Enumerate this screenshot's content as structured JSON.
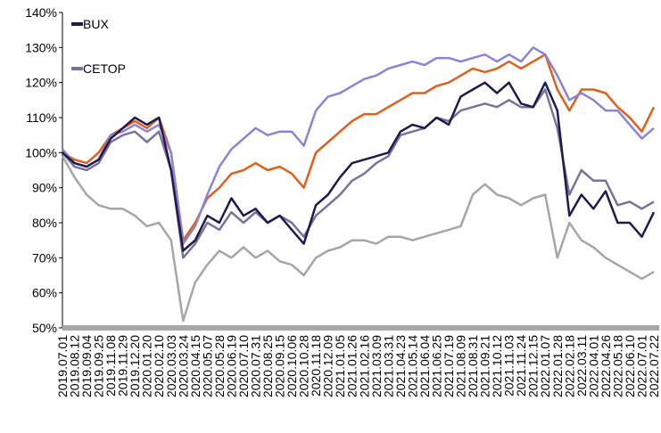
{
  "chart_data": {
    "type": "line",
    "categories": [
      "2019.07.01",
      "2019.08.12",
      "2019.09.04",
      "2019.09.25",
      "2019.11.08",
      "2019.11.29",
      "2019.12.20",
      "2020.01.20",
      "2020.02.10",
      "2020.03.03",
      "2020.03.24",
      "2020.04.15",
      "2020.05.07",
      "2020.05.28",
      "2020.06.19",
      "2020.07.10",
      "2020.07.31",
      "2020.08.25",
      "2020.09.15",
      "2020.10.06",
      "2020.10.28",
      "2020.11.18",
      "2020.12.09",
      "2021.01.05",
      "2021.01.26",
      "2021.02.16",
      "2021.03.09",
      "2021.03.31",
      "2021.04.23",
      "2021.05.14",
      "2021.06.04",
      "2021.06.25",
      "2021.07.19",
      "2021.08.09",
      "2021.08.31",
      "2021.09.21",
      "2021.10.12",
      "2021.11.03",
      "2021.11.24",
      "2021.12.15",
      "2022.01.07",
      "2022.01.28",
      "2022.02.18",
      "2022.03.11",
      "2022.04.01",
      "2022.04.26",
      "2022.05.18",
      "2022.06.10",
      "2022.07.01",
      "2022.07.22"
    ],
    "series": [
      {
        "color": "#a6a6a6",
        "values": [
          99,
          93,
          88,
          85,
          84,
          84,
          82,
          79,
          80,
          75,
          52,
          63,
          68,
          72,
          70,
          73,
          70,
          72,
          69,
          68,
          65,
          70,
          72,
          73,
          75,
          75,
          74,
          76,
          76,
          75,
          76,
          77,
          78,
          79,
          88,
          91,
          88,
          87,
          85,
          87,
          88,
          70,
          80,
          75,
          73,
          70,
          68,
          66,
          64,
          66
        ]
      },
      {
        "color": "#e0601b",
        "values": [
          100,
          98,
          97,
          100,
          105,
          107,
          109,
          107,
          110,
          100,
          75,
          80,
          87,
          90,
          94,
          95,
          97,
          95,
          96,
          94,
          90,
          100,
          103,
          106,
          109,
          111,
          111,
          113,
          115,
          117,
          117,
          119,
          120,
          122,
          124,
          123,
          124,
          126,
          124,
          126,
          128,
          118,
          112,
          118,
          118,
          117,
          113,
          110,
          106,
          113
        ]
      },
      {
        "color": "#8b84d6",
        "values": [
          101,
          97,
          96,
          98,
          105,
          106,
          108,
          106,
          108,
          100,
          74,
          79,
          88,
          96,
          101,
          104,
          107,
          105,
          106,
          106,
          102,
          112,
          116,
          117,
          119,
          121,
          122,
          124,
          125,
          126,
          125,
          127,
          127,
          126,
          127,
          128,
          126,
          128,
          126,
          130,
          128,
          122,
          115,
          117,
          115,
          112,
          112,
          108,
          104,
          107
        ]
      },
      {
        "name": "CETOP",
        "color": "#77739a",
        "values": [
          100,
          96,
          95,
          97,
          103,
          105,
          106,
          103,
          106,
          95,
          70,
          74,
          80,
          78,
          83,
          80,
          83,
          80,
          82,
          80,
          76,
          82,
          85,
          88,
          92,
          94,
          97,
          99,
          105,
          106,
          107,
          110,
          109,
          112,
          113,
          114,
          113,
          115,
          113,
          113,
          118,
          107,
          88,
          95,
          92,
          92,
          85,
          86,
          84,
          86
        ]
      },
      {
        "name": "BUX",
        "color": "#1f1a4d",
        "values": [
          100,
          97,
          96,
          98,
          104,
          107,
          110,
          108,
          110,
          95,
          72,
          75,
          82,
          80,
          87,
          82,
          84,
          80,
          82,
          78,
          74,
          85,
          88,
          93,
          97,
          98,
          99,
          100,
          106,
          108,
          107,
          110,
          108,
          116,
          118,
          120,
          117,
          120,
          114,
          113,
          120,
          112,
          82,
          88,
          84,
          89,
          80,
          80,
          76,
          83
        ]
      }
    ],
    "ylim": [
      50,
      140
    ],
    "yticks": [
      {
        "value": 50,
        "label": "50%"
      },
      {
        "value": 60,
        "label": "60%"
      },
      {
        "value": 70,
        "label": "70%"
      },
      {
        "value": 80,
        "label": "80%"
      },
      {
        "value": 90,
        "label": "90%"
      },
      {
        "value": 100,
        "label": "100%"
      },
      {
        "value": 110,
        "label": "110%"
      },
      {
        "value": 120,
        "label": "120%"
      },
      {
        "value": 130,
        "label": "130%"
      },
      {
        "value": 140,
        "label": "140%"
      }
    ],
    "legend": "top-left"
  }
}
